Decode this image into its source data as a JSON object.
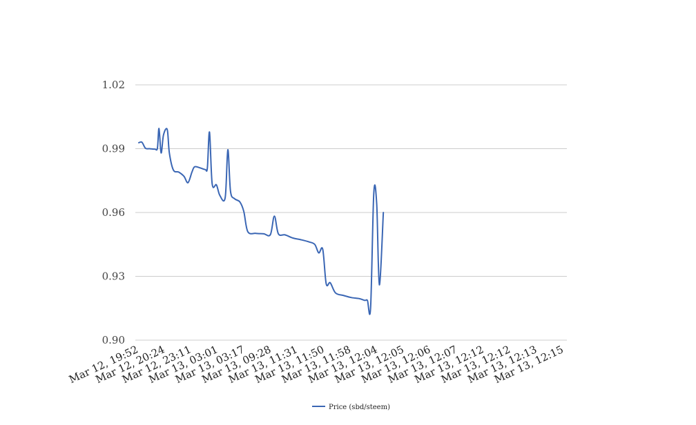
{
  "chart_data": {
    "type": "line",
    "title": "",
    "xlabel": "",
    "ylabel": "",
    "ylim": [
      0.9,
      1.02
    ],
    "yticks": [
      "0.90",
      "0.93",
      "0.96",
      "0.99",
      "1.02"
    ],
    "categories": [
      "Mar 12, 19:52",
      "Mar 12, 20:24",
      "Mar 12, 23:11",
      "Mar 13, 03:01",
      "Mar 13, 03:17",
      "Mar 13, 09:28",
      "Mar 13, 11:31",
      "Mar 13, 11:50",
      "Mar 13, 11:58",
      "Mar 13, 12:04",
      "Mar 13, 12:05",
      "Mar 13, 12:06",
      "Mar 13, 12:07",
      "Mar 13, 12:12",
      "Mar 13, 12:12",
      "Mar 13, 12:13",
      "Mar 13, 12:15"
    ],
    "grid": true,
    "legend_position": "bottom",
    "series": [
      {
        "name": "Price (sbd/steem)",
        "color": "#3a66b4",
        "points": [
          [
            0,
            0.9928
          ],
          [
            0.12,
            0.993
          ],
          [
            0.25,
            0.9902
          ],
          [
            0.4,
            0.99
          ],
          [
            0.6,
            0.9898
          ],
          [
            0.7,
            0.9902
          ],
          [
            0.76,
            0.9995
          ],
          [
            0.84,
            0.988
          ],
          [
            0.93,
            0.9965
          ],
          [
            1.07,
            0.999
          ],
          [
            1.15,
            0.988
          ],
          [
            1.3,
            0.98
          ],
          [
            1.5,
            0.979
          ],
          [
            1.7,
            0.977
          ],
          [
            1.85,
            0.974
          ],
          [
            2.0,
            0.979
          ],
          [
            2.1,
            0.9815
          ],
          [
            2.3,
            0.981
          ],
          [
            2.5,
            0.9802
          ],
          [
            2.58,
            0.981
          ],
          [
            2.66,
            0.9978
          ],
          [
            2.76,
            0.9735
          ],
          [
            2.92,
            0.973
          ],
          [
            3.05,
            0.968
          ],
          [
            3.25,
            0.967
          ],
          [
            3.35,
            0.9895
          ],
          [
            3.45,
            0.97
          ],
          [
            3.6,
            0.9665
          ],
          [
            3.8,
            0.965
          ],
          [
            3.95,
            0.9605
          ],
          [
            4.1,
            0.951
          ],
          [
            4.4,
            0.9502
          ],
          [
            4.7,
            0.95
          ],
          [
            4.95,
            0.9496
          ],
          [
            5.1,
            0.9583
          ],
          [
            5.25,
            0.95
          ],
          [
            5.5,
            0.9495
          ],
          [
            5.8,
            0.948
          ],
          [
            6.1,
            0.9472
          ],
          [
            6.4,
            0.9462
          ],
          [
            6.62,
            0.945
          ],
          [
            6.77,
            0.941
          ],
          [
            6.92,
            0.9427
          ],
          [
            7.05,
            0.9265
          ],
          [
            7.2,
            0.927
          ],
          [
            7.4,
            0.9222
          ],
          [
            7.7,
            0.921
          ],
          [
            8.0,
            0.92
          ],
          [
            8.3,
            0.9195
          ],
          [
            8.5,
            0.9187
          ],
          [
            8.6,
            0.9187
          ],
          [
            8.72,
            0.9152
          ],
          [
            8.84,
            0.969
          ],
          [
            8.95,
            0.964
          ],
          [
            9.05,
            0.926
          ],
          [
            9.2,
            0.96
          ]
        ]
      }
    ]
  }
}
